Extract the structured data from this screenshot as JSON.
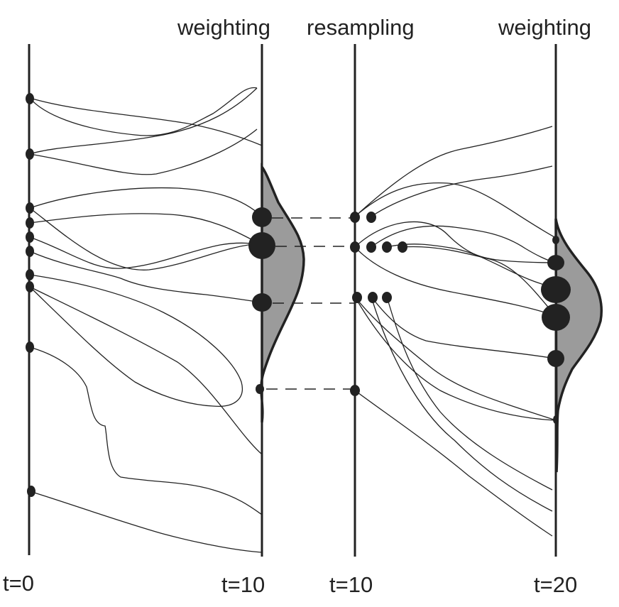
{
  "headers": {
    "weighting_1": "weighting",
    "resampling": "resampling",
    "weighting_2": "weighting"
  },
  "timesteps": {
    "t0": "t=0",
    "t10a": "t=10",
    "t10b": "t=10",
    "t20": "t=20"
  },
  "colors": {
    "ink": "#222222",
    "distribution_fill": "#9b9b9b",
    "background": "#ffffff"
  }
}
